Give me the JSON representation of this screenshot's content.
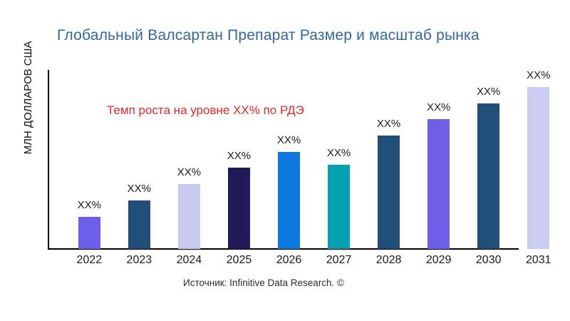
{
  "chart_data": {
    "type": "bar",
    "title": "Глобальный Валсартан Препарат Размер и масштаб рынка",
    "title_color": "#31689e",
    "ylabel": "МЛН ДОЛЛАРОВ США",
    "xlabel": "",
    "categories": [
      "2022",
      "2023",
      "2024",
      "2025",
      "2026",
      "2027",
      "2028",
      "2029",
      "2030",
      "2031"
    ],
    "value_labels": [
      "XX%",
      "XX%",
      "XX%",
      "XX%",
      "XX%",
      "XX%",
      "XX%",
      "XX%",
      "XX%",
      "XX%"
    ],
    "values_pct_of_max": [
      20,
      30,
      40,
      50,
      60,
      52,
      70,
      80,
      90,
      100
    ],
    "bar_colors": [
      "#6e5fe9",
      "#1f4e79",
      "#c9cbee",
      "#211b59",
      "#0d78e0",
      "#04a1b1",
      "#1f4e79",
      "#6e5fe9",
      "#1f4e79",
      "#cbcdf2"
    ],
    "grid": false,
    "legend": false,
    "y_ticks_visible": false,
    "axis_color": "#000000",
    "annotation": {
      "text": "Темп роста на уровне XX% по РДЭ",
      "color": "#e8262a"
    }
  },
  "footer": {
    "source_text": "Источник: Infinitive Data Research. ©"
  }
}
